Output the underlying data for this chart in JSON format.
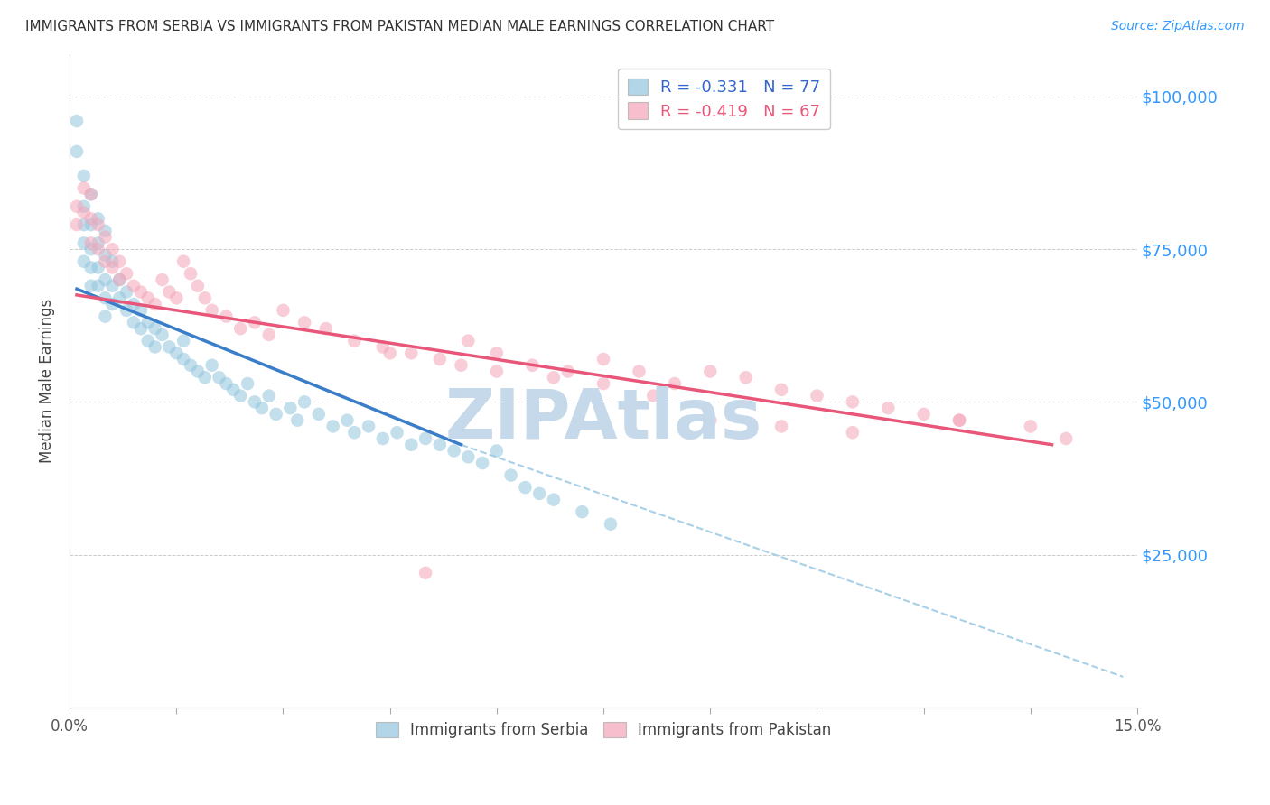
{
  "title": "IMMIGRANTS FROM SERBIA VS IMMIGRANTS FROM PAKISTAN MEDIAN MALE EARNINGS CORRELATION CHART",
  "source": "Source: ZipAtlas.com",
  "ylabel": "Median Male Earnings",
  "xlim": [
    0.0,
    0.15
  ],
  "ylim": [
    0,
    107000
  ],
  "x_ticks": [
    0.0,
    0.015,
    0.03,
    0.045,
    0.06,
    0.075,
    0.09,
    0.105,
    0.12,
    0.135,
    0.15
  ],
  "x_tick_labels_show": [
    "0.0%",
    "",
    "",
    "",
    "",
    "",
    "",
    "",
    "",
    "",
    "15.0%"
  ],
  "y_ticks": [
    0,
    25000,
    50000,
    75000,
    100000
  ],
  "y_tick_labels": [
    "",
    "$25,000",
    "$50,000",
    "$75,000",
    "$100,000"
  ],
  "serbia_R": -0.331,
  "serbia_N": 77,
  "pakistan_R": -0.419,
  "pakistan_N": 67,
  "serbia_color": "#92c5de",
  "pakistan_color": "#f4a5b8",
  "serbia_line_color": "#3a7dc9",
  "pakistan_line_color": "#e8577a",
  "dashed_line_color": "#a8d0e8",
  "legend_r_color": "#3366cc",
  "legend_n_color": "#3366cc",
  "legend_pakistan_r_color": "#e8577a",
  "legend_pakistan_n_color": "#3366cc",
  "legend_serbia_label": "Immigrants from Serbia",
  "legend_pakistan_label": "Immigrants from Pakistan",
  "watermark": "ZIPAtlas",
  "watermark_color": "#c5d9ea",
  "serbia_line_x0": 0.001,
  "serbia_line_y0": 68500,
  "serbia_line_x1": 0.055,
  "serbia_line_y1": 43000,
  "pakistan_line_x0": 0.001,
  "pakistan_line_y0": 67500,
  "pakistan_line_x1": 0.138,
  "pakistan_line_y1": 43000,
  "dash_line_x0": 0.055,
  "dash_line_y0": 43000,
  "dash_line_x1": 0.148,
  "dash_line_y1": 5000,
  "serbia_scatter_x": [
    0.001,
    0.001,
    0.002,
    0.002,
    0.002,
    0.002,
    0.002,
    0.003,
    0.003,
    0.003,
    0.003,
    0.003,
    0.004,
    0.004,
    0.004,
    0.004,
    0.005,
    0.005,
    0.005,
    0.005,
    0.005,
    0.006,
    0.006,
    0.006,
    0.007,
    0.007,
    0.008,
    0.008,
    0.009,
    0.009,
    0.01,
    0.01,
    0.011,
    0.011,
    0.012,
    0.012,
    0.013,
    0.014,
    0.015,
    0.016,
    0.016,
    0.017,
    0.018,
    0.019,
    0.02,
    0.021,
    0.022,
    0.023,
    0.024,
    0.025,
    0.026,
    0.027,
    0.028,
    0.029,
    0.031,
    0.032,
    0.033,
    0.035,
    0.037,
    0.039,
    0.04,
    0.042,
    0.044,
    0.046,
    0.048,
    0.05,
    0.052,
    0.054,
    0.056,
    0.058,
    0.06,
    0.062,
    0.064,
    0.066,
    0.068,
    0.072,
    0.076
  ],
  "serbia_scatter_y": [
    96000,
    91000,
    87000,
    82000,
    79000,
    76000,
    73000,
    84000,
    79000,
    75000,
    72000,
    69000,
    80000,
    76000,
    72000,
    69000,
    78000,
    74000,
    70000,
    67000,
    64000,
    73000,
    69000,
    66000,
    70000,
    67000,
    68000,
    65000,
    66000,
    63000,
    65000,
    62000,
    63000,
    60000,
    62000,
    59000,
    61000,
    59000,
    58000,
    57000,
    60000,
    56000,
    55000,
    54000,
    56000,
    54000,
    53000,
    52000,
    51000,
    53000,
    50000,
    49000,
    51000,
    48000,
    49000,
    47000,
    50000,
    48000,
    46000,
    47000,
    45000,
    46000,
    44000,
    45000,
    43000,
    44000,
    43000,
    42000,
    41000,
    40000,
    42000,
    38000,
    36000,
    35000,
    34000,
    32000,
    30000
  ],
  "pakistan_scatter_x": [
    0.001,
    0.001,
    0.002,
    0.002,
    0.003,
    0.003,
    0.003,
    0.004,
    0.004,
    0.005,
    0.005,
    0.006,
    0.006,
    0.007,
    0.007,
    0.008,
    0.009,
    0.01,
    0.011,
    0.012,
    0.013,
    0.014,
    0.015,
    0.016,
    0.017,
    0.018,
    0.019,
    0.02,
    0.022,
    0.024,
    0.026,
    0.028,
    0.03,
    0.033,
    0.036,
    0.04,
    0.044,
    0.048,
    0.052,
    0.056,
    0.06,
    0.065,
    0.07,
    0.075,
    0.08,
    0.085,
    0.09,
    0.095,
    0.1,
    0.105,
    0.11,
    0.115,
    0.12,
    0.125,
    0.045,
    0.05,
    0.055,
    0.06,
    0.068,
    0.075,
    0.082,
    0.09,
    0.1,
    0.11,
    0.125,
    0.135,
    0.14
  ],
  "pakistan_scatter_y": [
    82000,
    79000,
    85000,
    81000,
    84000,
    80000,
    76000,
    79000,
    75000,
    77000,
    73000,
    75000,
    72000,
    73000,
    70000,
    71000,
    69000,
    68000,
    67000,
    66000,
    70000,
    68000,
    67000,
    73000,
    71000,
    69000,
    67000,
    65000,
    64000,
    62000,
    63000,
    61000,
    65000,
    63000,
    62000,
    60000,
    59000,
    58000,
    57000,
    60000,
    58000,
    56000,
    55000,
    57000,
    55000,
    53000,
    55000,
    54000,
    52000,
    51000,
    50000,
    49000,
    48000,
    47000,
    58000,
    22000,
    56000,
    55000,
    54000,
    53000,
    51000,
    47000,
    46000,
    45000,
    47000,
    46000,
    44000
  ]
}
